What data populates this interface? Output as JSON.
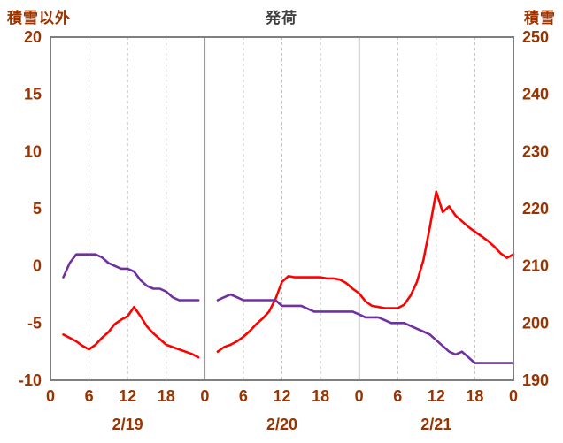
{
  "header": {
    "left_axis_title": "積雪以外",
    "chart_title": "発荷",
    "right_axis_title": "積雪"
  },
  "colors": {
    "axis_label": "#993300",
    "chart_title_color": "#404040",
    "frame": "#7f7f7f",
    "grid_minor": "#c0c0c0",
    "grid_day": "#9a9a9a",
    "series_red": "#ff0000",
    "series_purple": "#7030a0"
  },
  "chart_data": {
    "type": "line",
    "title": "発荷",
    "left_axis": {
      "title": "積雪以外",
      "min": -10,
      "max": 20,
      "step": 5,
      "tick_labels": [
        "20",
        "15",
        "10",
        "5",
        "0",
        "-5",
        "-10"
      ]
    },
    "right_axis": {
      "title": "積雪",
      "min": 190,
      "max": 250,
      "step": 10,
      "tick_labels": [
        "250",
        "240",
        "230",
        "220",
        "210",
        "200",
        "190"
      ]
    },
    "x_axis": {
      "min": 0,
      "max": 72,
      "tick_interval": 6,
      "tick_labels": [
        "0",
        "6",
        "12",
        "18",
        "0",
        "6",
        "12",
        "18",
        "0",
        "6",
        "12",
        "18",
        "0"
      ],
      "day_boundaries": [
        24,
        48
      ],
      "day_labels": [
        "2/19",
        "2/20",
        "2/21"
      ],
      "day_label_centers": [
        12,
        36,
        60
      ]
    },
    "grid": {
      "vertical_minor": "dashed",
      "vertical_day": "solid",
      "horizontal": "none"
    },
    "legend": "none",
    "series": [
      {
        "name": "積雪以外",
        "axis": "left",
        "color": "#ff0000",
        "segments": [
          [
            [
              2,
              -6.0
            ],
            [
              3,
              -6.3
            ],
            [
              4,
              -6.6
            ],
            [
              5,
              -7.0
            ],
            [
              6,
              -7.3
            ],
            [
              7,
              -6.9
            ],
            [
              8,
              -6.3
            ],
            [
              9,
              -5.8
            ],
            [
              10,
              -5.1
            ],
            [
              11,
              -4.7
            ],
            [
              12,
              -4.4
            ],
            [
              13,
              -3.6
            ],
            [
              14,
              -4.4
            ],
            [
              15,
              -5.3
            ],
            [
              16,
              -5.9
            ],
            [
              17,
              -6.4
            ],
            [
              18,
              -6.9
            ],
            [
              19,
              -7.1
            ],
            [
              20,
              -7.3
            ],
            [
              21,
              -7.5
            ],
            [
              22,
              -7.7
            ],
            [
              23,
              -8.0
            ]
          ],
          [
            [
              26,
              -7.5
            ],
            [
              27,
              -7.1
            ],
            [
              28,
              -6.9
            ],
            [
              29,
              -6.6
            ],
            [
              30,
              -6.2
            ],
            [
              31,
              -5.7
            ],
            [
              32,
              -5.1
            ],
            [
              33,
              -4.6
            ],
            [
              34,
              -4.0
            ],
            [
              35,
              -2.9
            ],
            [
              36,
              -1.4
            ],
            [
              37,
              -0.9
            ],
            [
              38,
              -1.0
            ],
            [
              39,
              -1.0
            ],
            [
              40,
              -1.0
            ],
            [
              41,
              -1.0
            ],
            [
              42,
              -1.0
            ],
            [
              43,
              -1.1
            ],
            [
              44,
              -1.1
            ],
            [
              45,
              -1.2
            ],
            [
              46,
              -1.5
            ],
            [
              47,
              -2.0
            ],
            [
              48,
              -2.4
            ],
            [
              49,
              -3.1
            ],
            [
              50,
              -3.5
            ],
            [
              51,
              -3.6
            ],
            [
              52,
              -3.7
            ],
            [
              53,
              -3.7
            ],
            [
              54,
              -3.7
            ],
            [
              55,
              -3.4
            ],
            [
              56,
              -2.6
            ],
            [
              57,
              -1.4
            ],
            [
              58,
              0.5
            ],
            [
              59,
              3.4
            ],
            [
              60,
              6.5
            ],
            [
              61,
              4.7
            ],
            [
              62,
              5.2
            ],
            [
              63,
              4.4
            ],
            [
              64,
              3.9
            ],
            [
              65,
              3.4
            ],
            [
              66,
              3.0
            ],
            [
              67,
              2.6
            ],
            [
              68,
              2.2
            ],
            [
              69,
              1.7
            ],
            [
              70,
              1.1
            ],
            [
              71,
              0.7
            ],
            [
              72,
              1.0
            ]
          ]
        ]
      },
      {
        "name": "積雪",
        "axis": "right",
        "color": "#7030a0",
        "segments": [
          [
            [
              2,
              208
            ],
            [
              3,
              210.5
            ],
            [
              4,
              212
            ],
            [
              5,
              212
            ],
            [
              6,
              212
            ],
            [
              7,
              212
            ],
            [
              8,
              211.5
            ],
            [
              9,
              210.5
            ],
            [
              10,
              210
            ],
            [
              11,
              209.5
            ],
            [
              12,
              209.5
            ],
            [
              13,
              209
            ],
            [
              14,
              207.5
            ],
            [
              15,
              206.5
            ],
            [
              16,
              206
            ],
            [
              17,
              206
            ],
            [
              18,
              205.5
            ],
            [
              19,
              204.5
            ],
            [
              20,
              204
            ],
            [
              21,
              204
            ],
            [
              22,
              204
            ],
            [
              23,
              204
            ]
          ],
          [
            [
              26,
              204
            ],
            [
              27,
              204.5
            ],
            [
              28,
              205
            ],
            [
              29,
              204.5
            ],
            [
              30,
              204
            ],
            [
              31,
              204
            ],
            [
              32,
              204
            ],
            [
              33,
              204
            ],
            [
              34,
              204
            ],
            [
              35,
              204
            ],
            [
              36,
              203
            ],
            [
              37,
              203
            ],
            [
              38,
              203
            ],
            [
              39,
              203
            ],
            [
              40,
              202.5
            ],
            [
              41,
              202
            ],
            [
              42,
              202
            ],
            [
              43,
              202
            ],
            [
              44,
              202
            ],
            [
              45,
              202
            ],
            [
              46,
              202
            ],
            [
              47,
              202
            ],
            [
              48,
              201.5
            ],
            [
              49,
              201
            ],
            [
              50,
              201
            ],
            [
              51,
              201
            ],
            [
              52,
              200.5
            ],
            [
              53,
              200
            ],
            [
              54,
              200
            ],
            [
              55,
              200
            ],
            [
              56,
              199.5
            ],
            [
              57,
              199
            ],
            [
              58,
              198.5
            ],
            [
              59,
              198
            ],
            [
              60,
              197
            ],
            [
              61,
              196
            ],
            [
              62,
              195
            ],
            [
              63,
              194.5
            ],
            [
              64,
              195
            ],
            [
              65,
              194
            ],
            [
              66,
              193
            ],
            [
              67,
              193
            ],
            [
              68,
              193
            ],
            [
              69,
              193
            ],
            [
              70,
              193
            ],
            [
              71,
              193
            ],
            [
              72,
              193
            ]
          ]
        ]
      }
    ]
  }
}
